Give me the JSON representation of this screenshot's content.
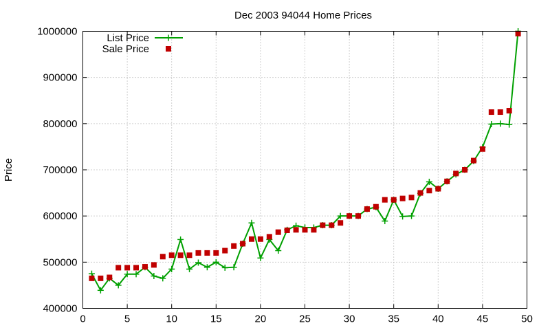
{
  "chart_data": {
    "type": "line",
    "title": "Dec 2003 94044 Home Prices",
    "xlabel": "",
    "ylabel": "Price",
    "xlim": [
      0,
      50
    ],
    "ylim": [
      400000,
      1000000
    ],
    "xticks": [
      0,
      5,
      10,
      15,
      20,
      25,
      30,
      35,
      40,
      45,
      50
    ],
    "yticks": [
      400000,
      500000,
      600000,
      700000,
      800000,
      900000,
      1000000
    ],
    "grid": true,
    "legend_position": "top-left",
    "series": [
      {
        "name": "List Price",
        "style": "line-plus",
        "color": "#00a000",
        "x": [
          1,
          2,
          3,
          4,
          5,
          6,
          7,
          8,
          9,
          10,
          11,
          12,
          13,
          14,
          15,
          16,
          17,
          18,
          19,
          20,
          21,
          22,
          23,
          24,
          25,
          26,
          27,
          28,
          29,
          30,
          31,
          32,
          33,
          34,
          35,
          36,
          37,
          38,
          39,
          40,
          41,
          42,
          43,
          44,
          45,
          46,
          47,
          48,
          49
        ],
        "y": [
          475000,
          439000,
          465000,
          450000,
          474000,
          474000,
          489000,
          470000,
          465000,
          485000,
          549000,
          485000,
          499000,
          489000,
          500000,
          488000,
          489000,
          540000,
          585000,
          509000,
          549000,
          525000,
          570000,
          579000,
          575000,
          575000,
          580000,
          580000,
          600000,
          600000,
          600000,
          615000,
          619000,
          589000,
          635000,
          599000,
          600000,
          649000,
          674000,
          659000,
          675000,
          690000,
          700000,
          719000,
          749000,
          799000,
          800000,
          798000,
          1000000
        ]
      },
      {
        "name": "Sale Price",
        "style": "square",
        "color": "#c00000",
        "x": [
          1,
          2,
          3,
          4,
          5,
          6,
          7,
          8,
          9,
          10,
          11,
          12,
          13,
          14,
          15,
          16,
          17,
          18,
          19,
          20,
          21,
          22,
          23,
          24,
          25,
          26,
          27,
          28,
          29,
          30,
          31,
          32,
          33,
          34,
          35,
          36,
          37,
          38,
          39,
          40,
          41,
          42,
          43,
          44,
          45,
          46,
          47,
          48,
          49
        ],
        "y": [
          465000,
          465000,
          467000,
          488000,
          488000,
          488000,
          490000,
          494000,
          512000,
          515000,
          515000,
          515000,
          520000,
          520000,
          520000,
          525000,
          535000,
          540000,
          550000,
          550000,
          555000,
          565000,
          569000,
          570000,
          570000,
          570000,
          580000,
          580000,
          585000,
          600000,
          600000,
          615000,
          620000,
          635000,
          635000,
          638000,
          640000,
          650000,
          655000,
          659000,
          675000,
          692000,
          700000,
          720000,
          745000,
          825000,
          825000,
          828000,
          995000
        ]
      }
    ]
  }
}
